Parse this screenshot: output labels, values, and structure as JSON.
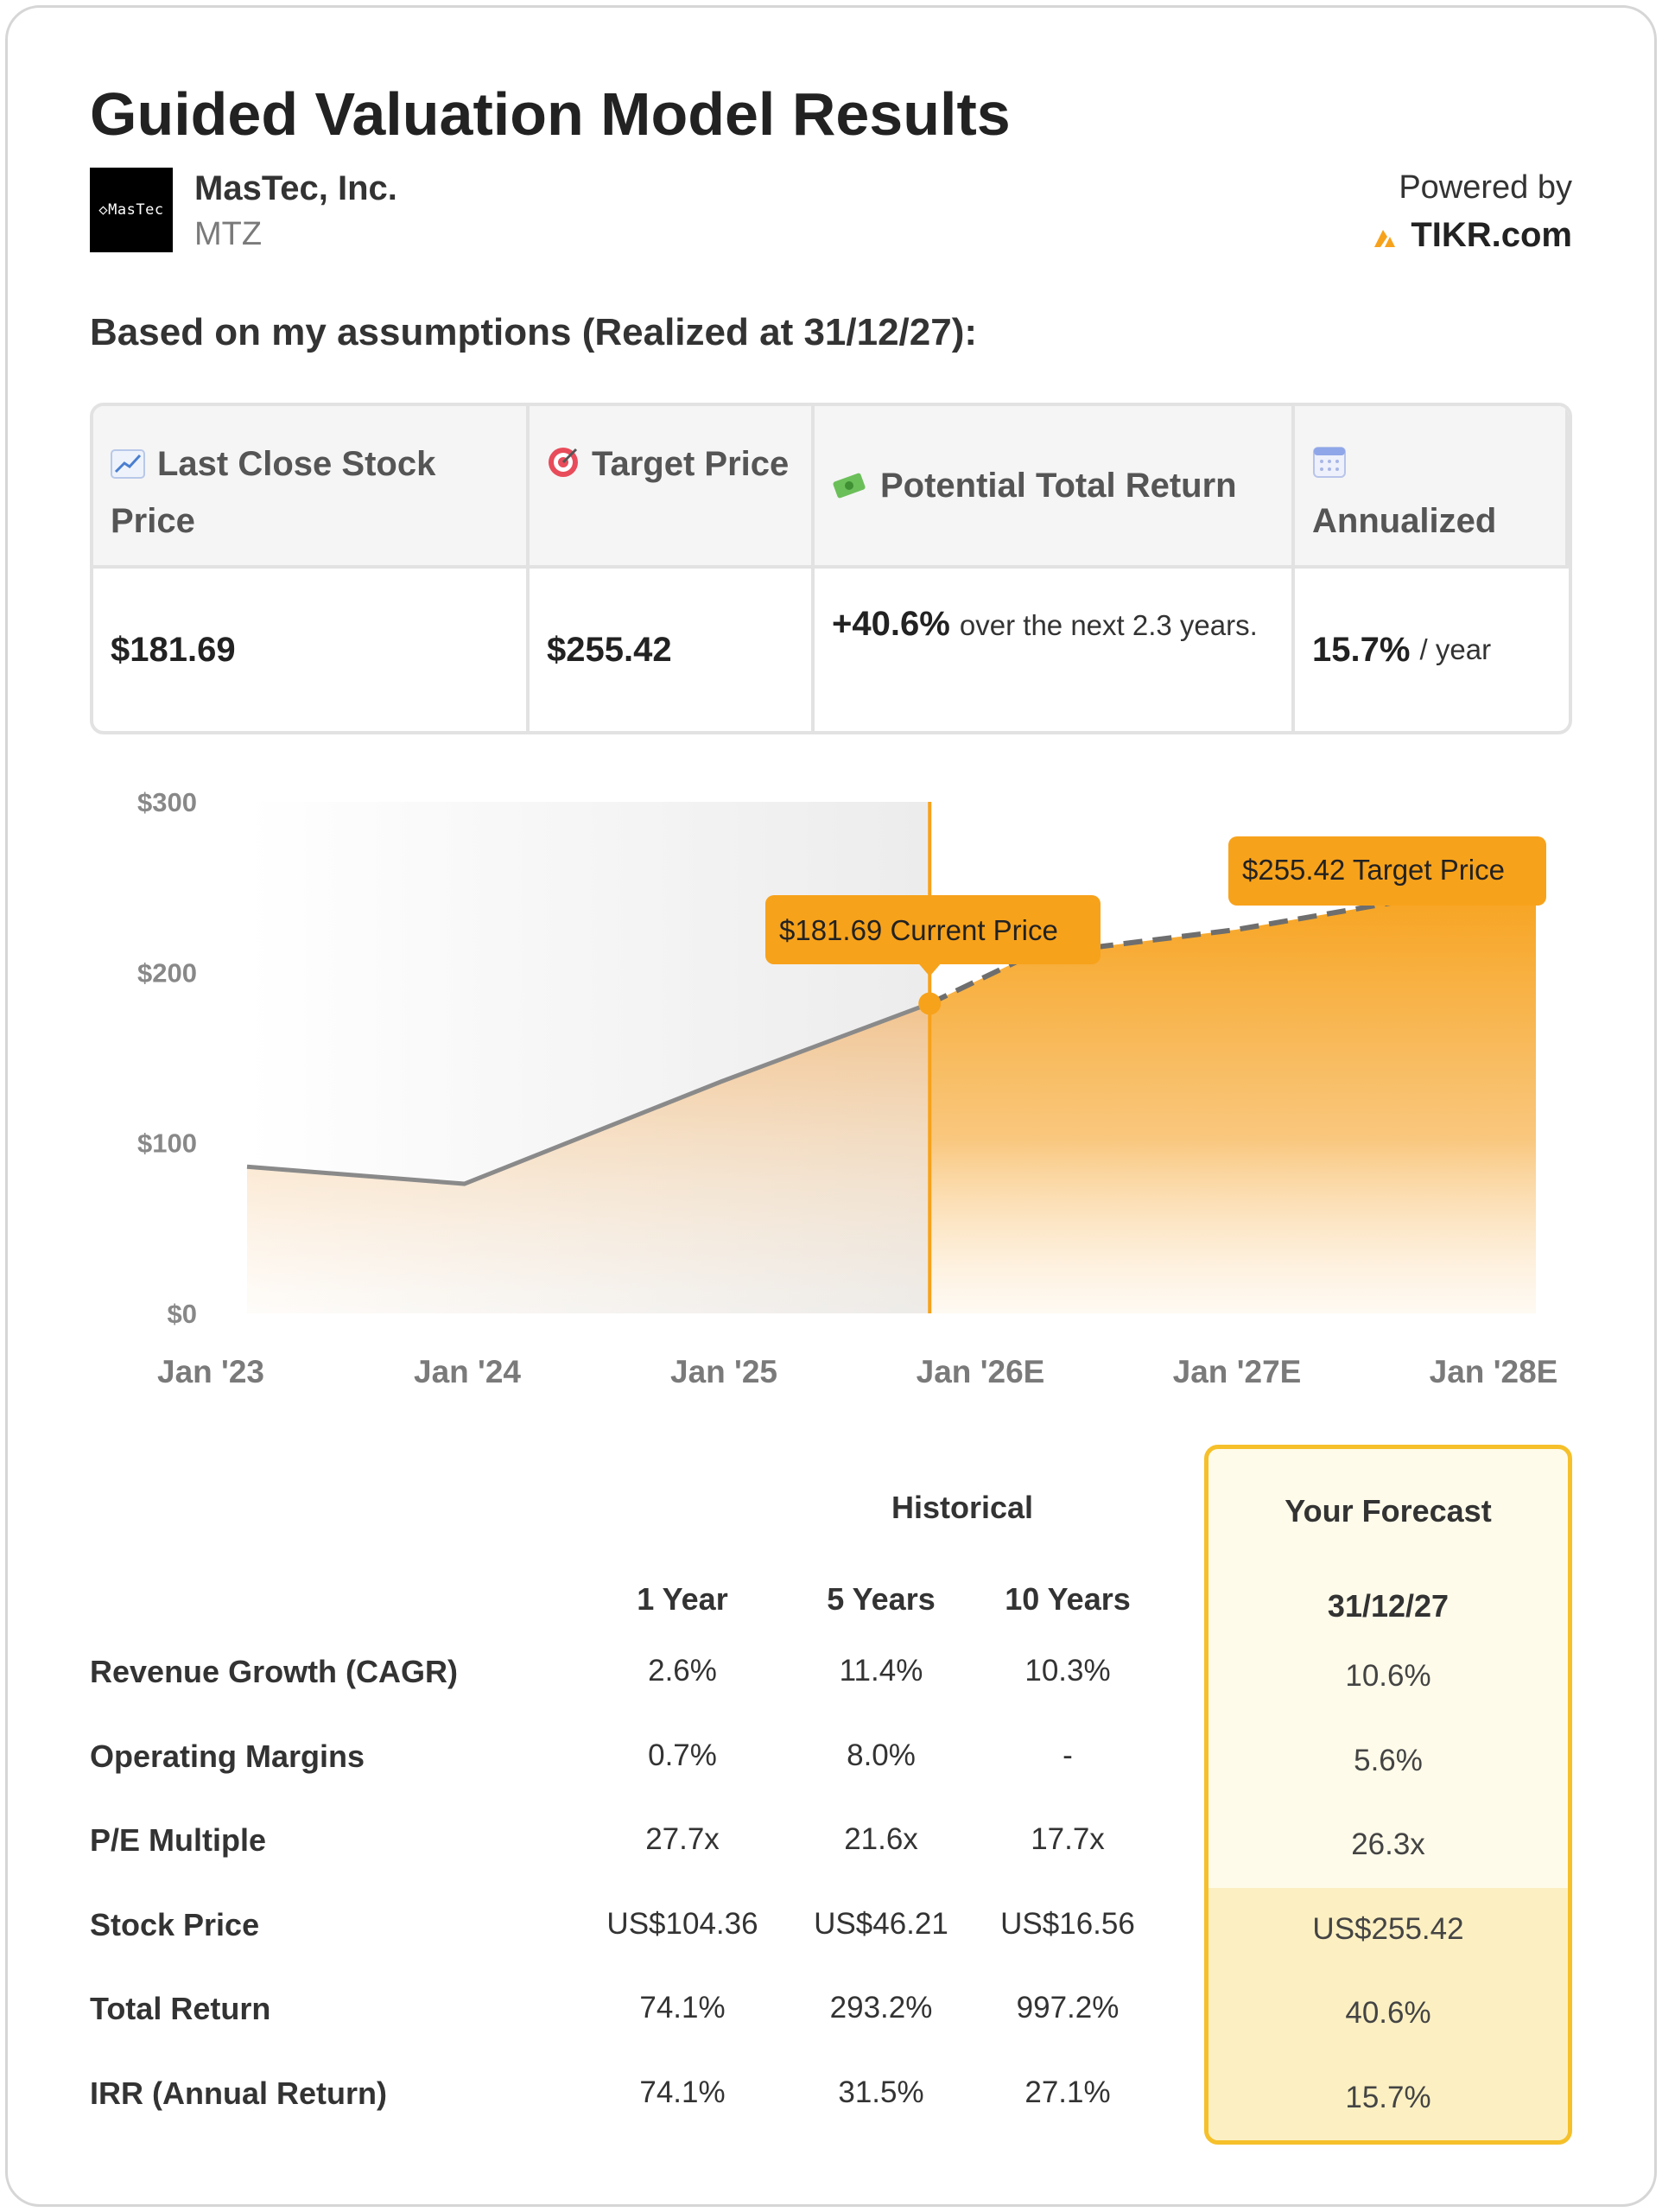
{
  "header": {
    "title": "Guided Valuation Model Results",
    "logo_text": "◇MasTec",
    "company": "MasTec, Inc.",
    "ticker": "MTZ",
    "powered_by": "Powered by",
    "brand": "TIKR.com"
  },
  "assumption_line": "Based on my assumptions (Realized at 31/12/27):",
  "summary": {
    "headers": [
      {
        "icon": "chart-up-icon",
        "label": "Last Close Stock Price"
      },
      {
        "icon": "target-icon",
        "label": "Target Price"
      },
      {
        "icon": "money-icon",
        "label": "Potential Total Return"
      },
      {
        "icon": "calendar-icon",
        "label": "Annualized"
      }
    ],
    "last_close": "$181.69",
    "target": "$255.42",
    "total_return": "+40.6%",
    "total_return_note": "over the next 2.3 years.",
    "annualized": "15.7%",
    "annualized_note": "/ year"
  },
  "chart_data": {
    "type": "area",
    "x": [
      "Jan '23",
      "Jan '24",
      "Jan '25",
      "Jan '26E",
      "Jan '27E",
      "Jan '28E"
    ],
    "y_ticks": [
      "$300",
      "$200",
      "$100",
      "$0"
    ],
    "ylim": [
      0,
      300
    ],
    "historical": [
      {
        "x": 2023.0,
        "y": 86
      },
      {
        "x": 2024.0,
        "y": 76
      },
      {
        "x": 2025.0,
        "y": 136
      },
      {
        "x": 2025.81,
        "y": 181.69
      }
    ],
    "forecast": [
      {
        "x": 2025.81,
        "y": 181.69
      },
      {
        "x": 2026.2,
        "y": 210
      },
      {
        "x": 2027.0,
        "y": 225
      },
      {
        "x": 2027.9,
        "y": 255.42
      }
    ],
    "current_label": "$181.69 Current Price",
    "target_label": "$255.42 Target Price",
    "colors": {
      "accent": "#f7a21b",
      "line": "#8a8a8a",
      "hist_bg": "#f0f0f0"
    }
  },
  "metrics": {
    "historical_label": "Historical",
    "forecast_label": "Your Forecast",
    "columns": [
      "1 Year",
      "5 Years",
      "10 Years"
    ],
    "forecast_date": "31/12/27",
    "rows": [
      {
        "label": "Revenue Growth (CAGR)",
        "values": [
          "2.6%",
          "11.4%",
          "10.3%"
        ],
        "forecast": "10.6%"
      },
      {
        "label": "Operating Margins",
        "values": [
          "0.7%",
          "8.0%",
          "-"
        ],
        "forecast": "5.6%"
      },
      {
        "label": "P/E Multiple",
        "values": [
          "27.7x",
          "21.6x",
          "17.7x"
        ],
        "forecast": "26.3x"
      },
      {
        "label": "Stock Price",
        "values": [
          "US$104.36",
          "US$46.21",
          "US$16.56"
        ],
        "forecast": "US$255.42"
      },
      {
        "label": "Total Return",
        "values": [
          "74.1%",
          "293.2%",
          "997.2%"
        ],
        "forecast": "40.6%"
      },
      {
        "label": "IRR (Annual Return)",
        "values": [
          "74.1%",
          "31.5%",
          "27.1%"
        ],
        "forecast": "15.7%"
      }
    ]
  }
}
